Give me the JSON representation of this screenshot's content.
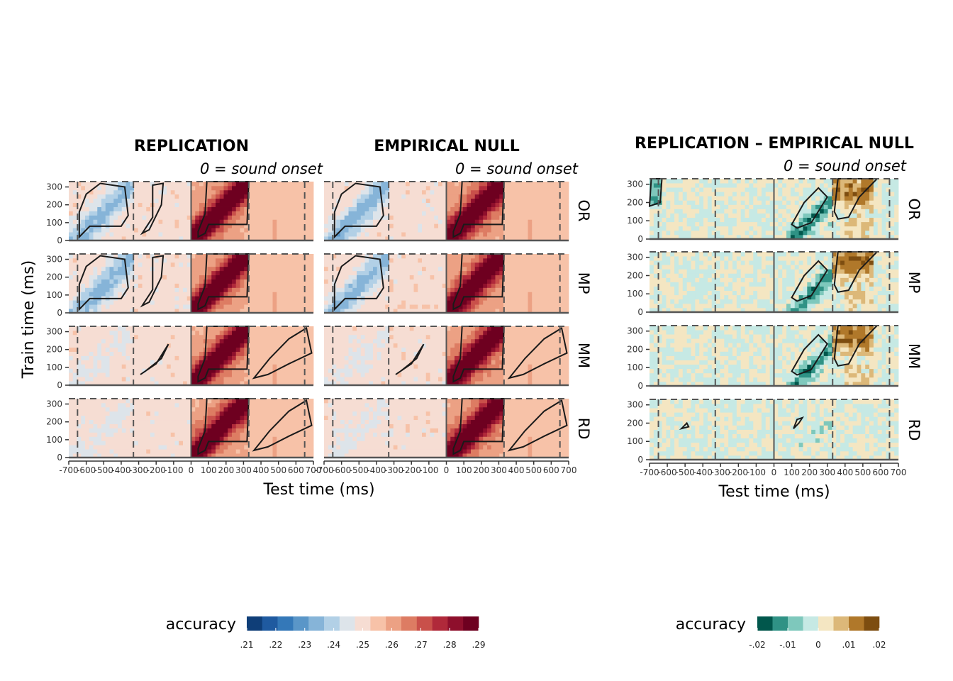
{
  "chart_data": {
    "type": "heatmap",
    "x_ticks": [
      "-700",
      "-600",
      "-500",
      "-400",
      "-300",
      "-200",
      "-100",
      "0",
      "100",
      "200",
      "300",
      "400",
      "500",
      "600",
      "700"
    ],
    "y_ticks": [
      "0",
      "100",
      "200",
      "300"
    ],
    "xlabel": "Test time (ms)",
    "ylabel": "Train time (ms)",
    "rows": [
      "OR",
      "MP",
      "MM",
      "RD"
    ],
    "xlim": [
      -700,
      700
    ],
    "ylim": [
      0,
      330
    ],
    "reference_lines": {
      "solid_x": [
        0
      ],
      "dashed_x": [
        -650,
        -330,
        330,
        650
      ],
      "dashed_y": [
        330
      ]
    },
    "panels": [
      {
        "title": "REPLICATION",
        "subtitle": "0 = sound onset",
        "scale": "main"
      },
      {
        "title": "EMPIRICAL NULL",
        "subtitle": "0 = sound onset",
        "scale": "main"
      },
      {
        "title": "REPLICATION – EMPIRICAL NULL",
        "subtitle": "0 = sound onset",
        "scale": "diff"
      }
    ],
    "colorbars": [
      {
        "title": "accuracy",
        "tick_labels": [
          ".21",
          ".22",
          ".23",
          ".24",
          ".25",
          ".26",
          ".27",
          ".28",
          ".29"
        ],
        "range": [
          0.21,
          0.29
        ],
        "colors": [
          "#0f3e78",
          "#1f5aa0",
          "#3478b8",
          "#5a96c8",
          "#86b4d8",
          "#b2d0e6",
          "#dde4ea",
          "#f6ddd3",
          "#f7c2a8",
          "#eca184",
          "#dd7c63",
          "#c9504a",
          "#b0293a",
          "#8e0f2c",
          "#6e0020"
        ]
      },
      {
        "title": "accuracy",
        "tick_labels": [
          "-.02",
          "-.01",
          "0",
          ".01",
          ".02"
        ],
        "range": [
          -0.02,
          0.02
        ],
        "colors": [
          "#01574c",
          "#2f9285",
          "#7ec8bc",
          "#c6e9e4",
          "#f4e6c2",
          "#dcb879",
          "#b0782a",
          "#7d4d10"
        ]
      }
    ]
  }
}
